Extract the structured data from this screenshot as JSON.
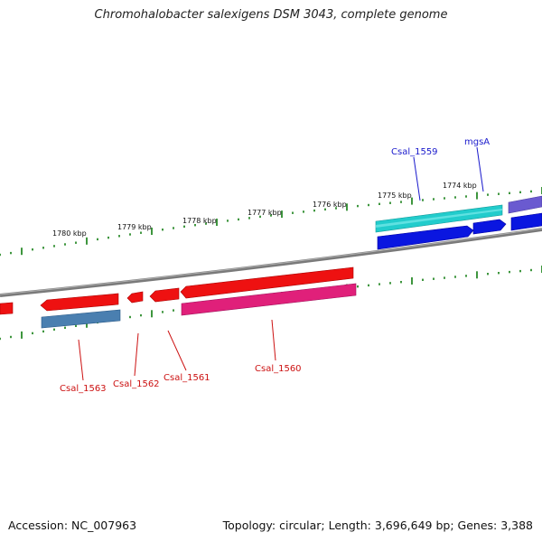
{
  "title": "Chromohalobacter salexigens DSM 3043, complete genome",
  "footer": {
    "accession": "Accession: NC_007963",
    "summary": "Topology: circular; Length: 3,696,649 bp; Genes: 3,388"
  },
  "scale_labels": [
    "1780 kbp",
    "1779 kbp",
    "1778 kbp",
    "1777 kbp",
    "1776 kbp",
    "1775 kbp",
    "1774 kbp"
  ],
  "gene_labels": {
    "top": [
      "Csal_1559",
      "mgsA"
    ],
    "bottom": [
      "Csal_1563",
      "Csal_1562",
      "Csal_1561",
      "Csal_1560"
    ]
  },
  "colors": {
    "forward_label": "#1a1acc",
    "reverse_label": "#cc1111",
    "backbone": "#808080",
    "ticks": "#2a8a2a"
  }
}
